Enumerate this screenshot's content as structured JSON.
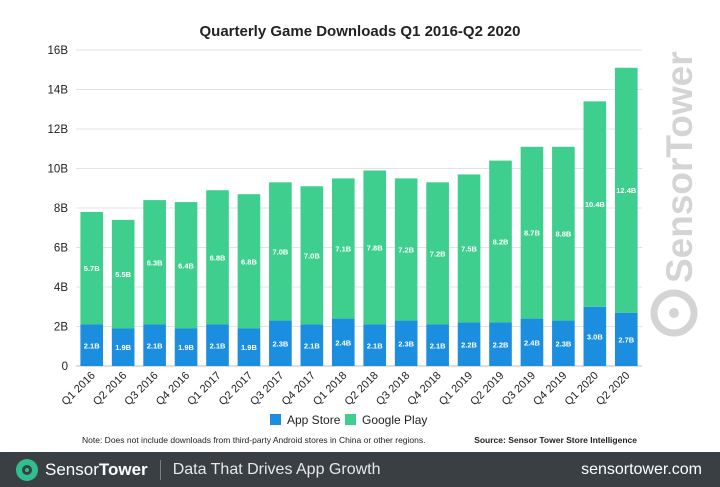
{
  "chart_data": {
    "type": "bar",
    "stacked": true,
    "title": "Quarterly Game Downloads Q1 2016-Q2 2020",
    "categories": [
      "Q1 2016",
      "Q2 2016",
      "Q3 2016",
      "Q4 2016",
      "Q1 2017",
      "Q2 2017",
      "Q3 2017",
      "Q4 2017",
      "Q1 2018",
      "Q2 2018",
      "Q3 2018",
      "Q4 2018",
      "Q1 2019",
      "Q2 2019",
      "Q3 2019",
      "Q4 2019",
      "Q1 2020",
      "Q2 2020"
    ],
    "series": [
      {
        "name": "App Store",
        "color": "#1b8ee0",
        "values": [
          2.1,
          1.9,
          2.1,
          1.9,
          2.1,
          1.9,
          2.3,
          2.1,
          2.4,
          2.1,
          2.3,
          2.1,
          2.2,
          2.2,
          2.4,
          2.3,
          3.0,
          2.7
        ],
        "labels": [
          "2.1B",
          "1.9B",
          "2.1B",
          "1.9B",
          "2.1B",
          "1.9B",
          "2.3B",
          "2.1B",
          "2.4B",
          "2.1B",
          "2.3B",
          "2.1B",
          "2.2B",
          "2.2B",
          "2.4B",
          "2.3B",
          "3.0B",
          "2.7B"
        ]
      },
      {
        "name": "Google Play",
        "color": "#3ecf8e",
        "values": [
          5.7,
          5.5,
          6.3,
          6.4,
          6.8,
          6.8,
          7.0,
          7.0,
          7.1,
          7.8,
          7.2,
          7.2,
          7.5,
          8.2,
          8.7,
          8.8,
          10.4,
          12.4
        ],
        "labels": [
          "5.7B",
          "5.5B",
          "6.3B",
          "6.4B",
          "6.8B",
          "6.8B",
          "7.0B",
          "7.0B",
          "7.1B",
          "7.8B",
          "7.2B",
          "7.2B",
          "7.5B",
          "8.2B",
          "8.7B",
          "8.8B",
          "10.4B",
          "12.4B"
        ]
      }
    ],
    "ylim": [
      0,
      16
    ],
    "yticks": [
      0,
      2,
      4,
      6,
      8,
      10,
      12,
      14,
      16
    ],
    "ytick_labels": [
      "0",
      "2B",
      "4B",
      "6B",
      "8B",
      "10B",
      "12B",
      "14B",
      "16B"
    ],
    "grid": true,
    "legend": "bottom-center",
    "note": "Note: Does not include downloads from third-party Android stores in China or other regions.",
    "source": "Source: Sensor Tower Store Intelligence",
    "watermark": "SensorTower"
  },
  "footer": {
    "brand_part1": "Sensor",
    "brand_part2": "Tower",
    "tagline": "Data That Drives App Growth",
    "url": "sensortower.com",
    "logo_icon": "sensor-tower-logo-icon"
  }
}
